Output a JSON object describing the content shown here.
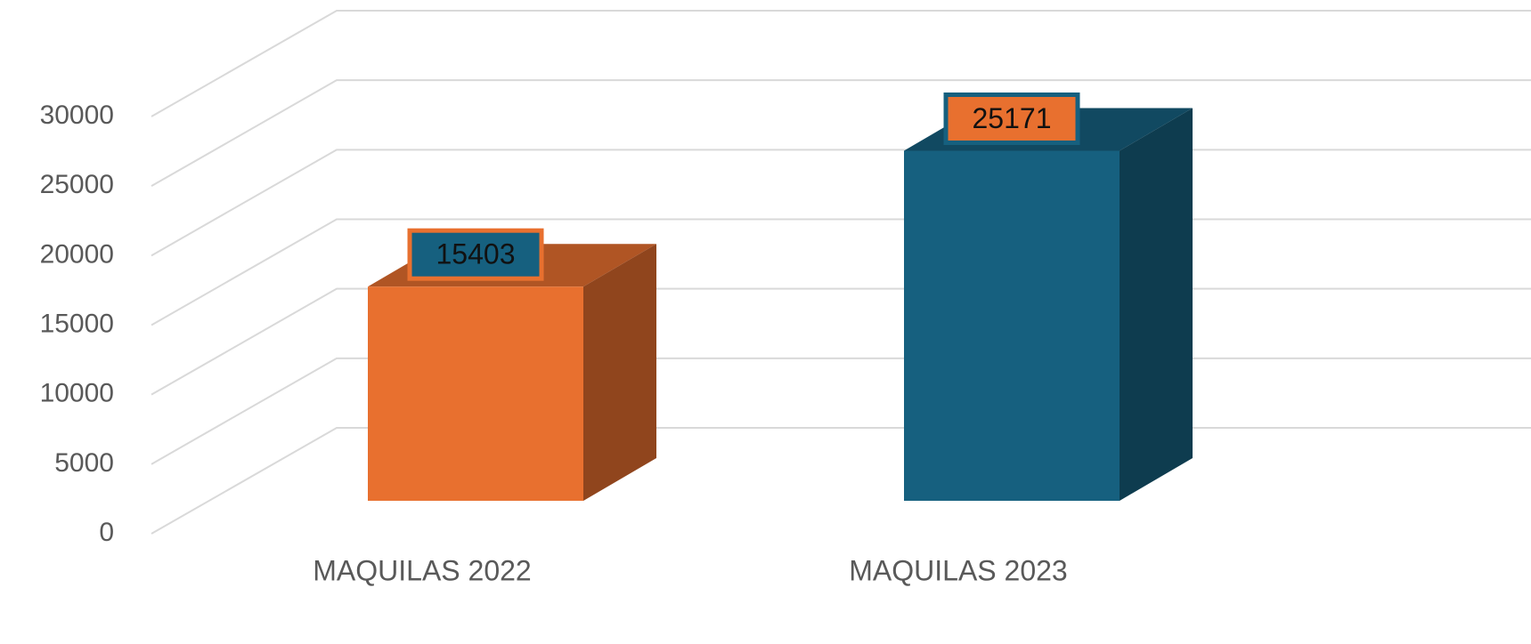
{
  "chart_data": {
    "type": "bar",
    "categories": [
      "MAQUILAS 2022",
      "MAQUILAS 2023"
    ],
    "values": [
      15403,
      25171
    ],
    "colors": [
      "#e8702f",
      "#16607f"
    ],
    "value_label_colors": [
      "#16607f",
      "#e8702f"
    ],
    "ylim": [
      0,
      30000
    ],
    "yticks": [
      0,
      5000,
      10000,
      15000,
      20000,
      25000,
      30000
    ],
    "grid": true
  }
}
